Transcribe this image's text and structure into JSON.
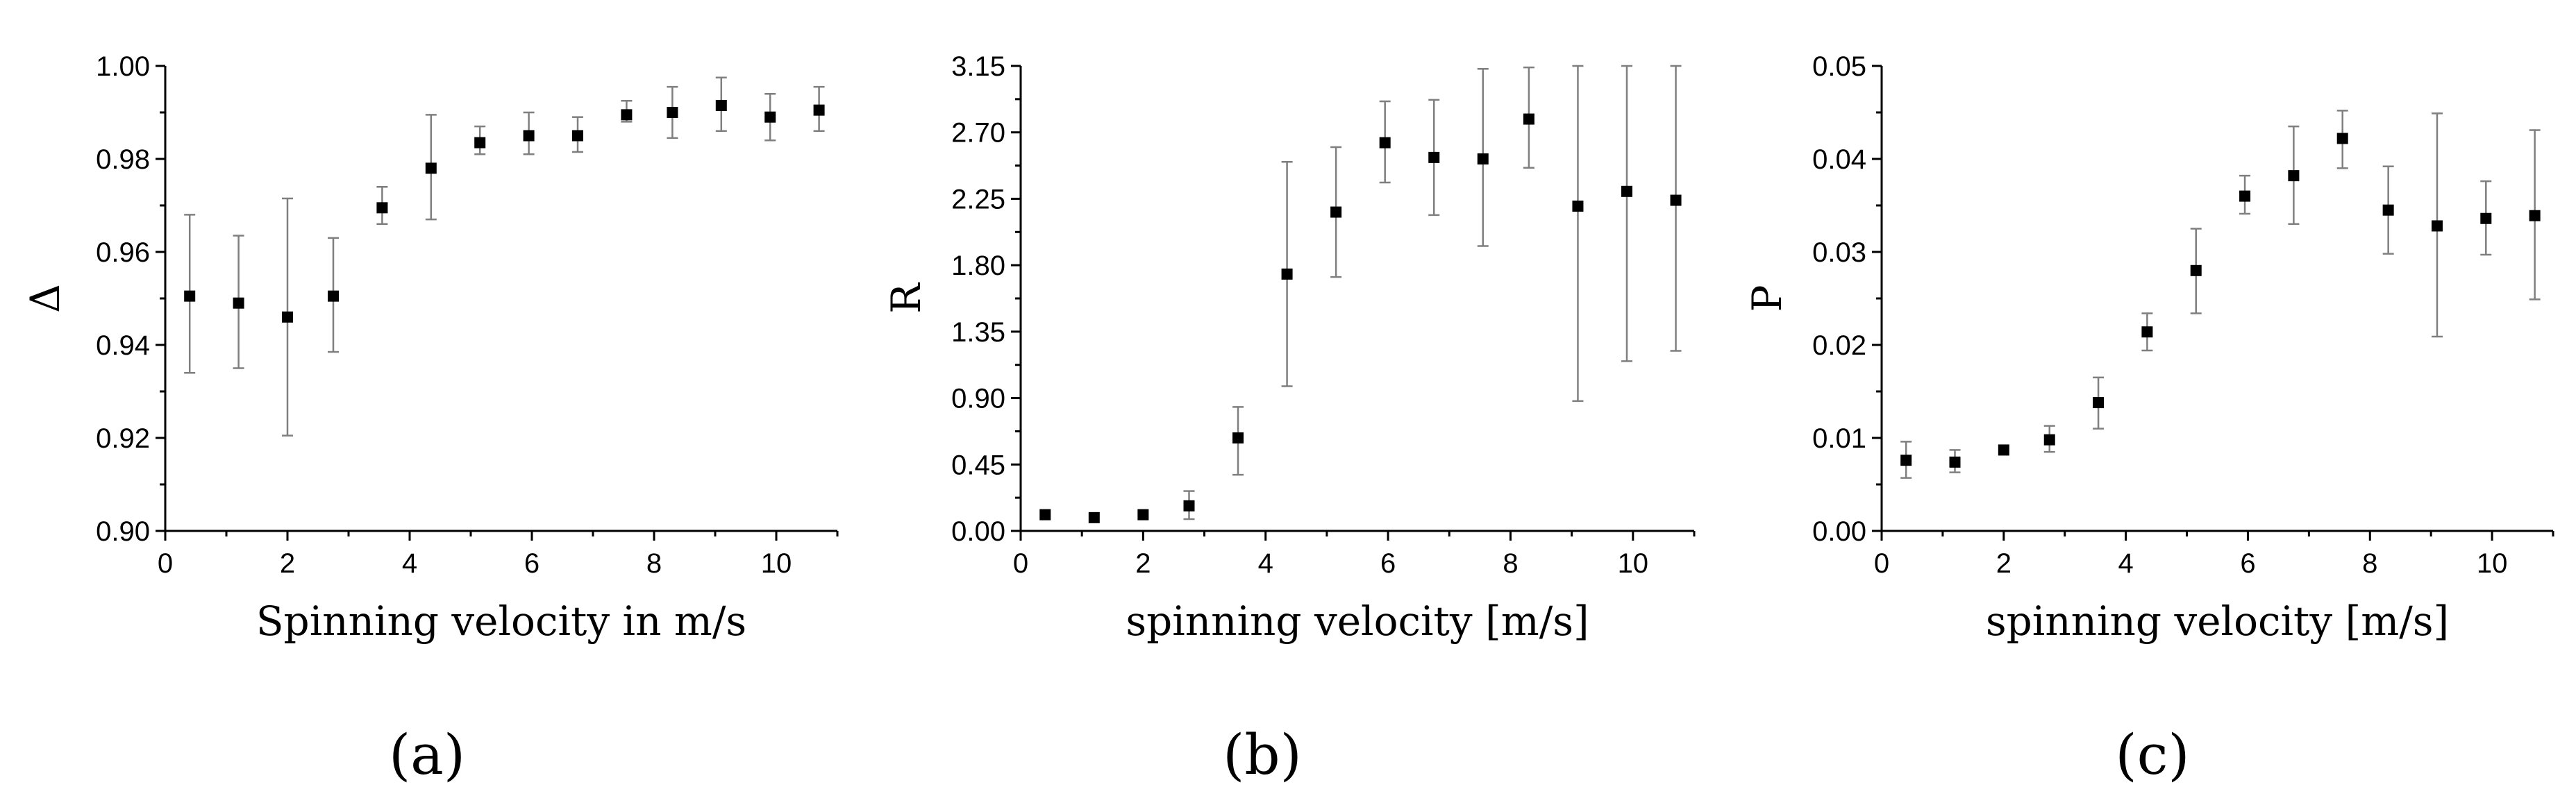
{
  "chart_data": [
    {
      "type": "scatter",
      "panel_label": "(a)",
      "xlabel": "Spinning velocity in m/s",
      "ylabel": "Δ",
      "xlim": [
        0,
        11
      ],
      "ylim": [
        0.9,
        1.0
      ],
      "x_ticks": [
        0,
        2,
        4,
        6,
        8,
        10
      ],
      "x_tick_labels": [
        "0",
        "2",
        "4",
        "6",
        "8",
        "10"
      ],
      "y_ticks": [
        0.9,
        0.92,
        0.94,
        0.96,
        0.98,
        1.0
      ],
      "y_tick_labels": [
        "0.90",
        "0.92",
        "0.94",
        "0.96",
        "0.98",
        "1.00"
      ],
      "series": [
        {
          "name": "Δ",
          "x": [
            0.4,
            1.2,
            2.0,
            2.75,
            3.55,
            4.35,
            5.15,
            5.95,
            6.75,
            7.55,
            8.3,
            9.1,
            9.9,
            10.7
          ],
          "y": [
            0.9505,
            0.949,
            0.946,
            0.9505,
            0.9695,
            0.978,
            0.9835,
            0.985,
            0.985,
            0.9895,
            0.99,
            0.9915,
            0.989,
            0.9905
          ],
          "err_low": [
            0.934,
            0.935,
            0.9205,
            0.9385,
            0.966,
            0.967,
            0.981,
            0.981,
            0.9815,
            0.988,
            0.9845,
            0.986,
            0.984,
            0.986
          ],
          "err_high": [
            0.968,
            0.9635,
            0.9715,
            0.963,
            0.974,
            0.9895,
            0.987,
            0.99,
            0.989,
            0.9925,
            0.9955,
            0.9975,
            0.994,
            0.9955
          ]
        }
      ]
    },
    {
      "type": "scatter",
      "panel_label": "(b)",
      "xlabel": "spinning velocity [m/s]",
      "ylabel": "R",
      "xlim": [
        0,
        11
      ],
      "ylim": [
        0,
        3.15
      ],
      "x_ticks": [
        0,
        2,
        4,
        6,
        8,
        10
      ],
      "x_tick_labels": [
        "0",
        "2",
        "4",
        "6",
        "8",
        "10"
      ],
      "y_ticks": [
        0,
        0.45,
        0.9,
        1.35,
        1.8,
        2.25,
        2.7,
        3.15
      ],
      "y_tick_labels": [
        "0.00",
        "0.45",
        "0.90",
        "1.35",
        "1.80",
        "2.25",
        "2.70",
        "3.15"
      ],
      "series": [
        {
          "name": "R",
          "x": [
            0.4,
            1.2,
            2.0,
            2.75,
            3.55,
            4.35,
            5.15,
            5.95,
            6.75,
            7.55,
            8.3,
            9.1,
            9.9,
            10.7
          ],
          "y": [
            0.11,
            0.09,
            0.11,
            0.17,
            0.63,
            1.74,
            2.16,
            2.63,
            2.53,
            2.52,
            2.79,
            2.2,
            2.3,
            2.24
          ],
          "err_low": [
            0.11,
            0.09,
            0.11,
            0.08,
            0.38,
            0.98,
            1.72,
            2.36,
            2.14,
            1.93,
            2.46,
            0.88,
            1.15,
            1.22
          ],
          "err_high": [
            0.11,
            0.09,
            0.11,
            0.27,
            0.84,
            2.5,
            2.6,
            2.91,
            2.92,
            3.13,
            3.14,
            3.15,
            3.15,
            3.15
          ]
        }
      ]
    },
    {
      "type": "scatter",
      "panel_label": "(c)",
      "xlabel": "spinning velocity [m/s]",
      "ylabel": "P",
      "xlim": [
        0,
        11
      ],
      "ylim": [
        0,
        0.05
      ],
      "x_ticks": [
        0,
        2,
        4,
        6,
        8,
        10
      ],
      "x_tick_labels": [
        "0",
        "2",
        "4",
        "6",
        "8",
        "10"
      ],
      "y_ticks": [
        0,
        0.01,
        0.02,
        0.03,
        0.04,
        0.05
      ],
      "y_tick_labels": [
        "0.00",
        "0.01",
        "0.02",
        "0.03",
        "0.04",
        "0.05"
      ],
      "series": [
        {
          "name": "P",
          "x": [
            0.4,
            1.2,
            2.0,
            2.75,
            3.55,
            4.35,
            5.15,
            5.95,
            6.75,
            7.55,
            8.3,
            9.1,
            9.9,
            10.7
          ],
          "y": [
            0.0076,
            0.0074,
            0.0087,
            0.0098,
            0.0138,
            0.0214,
            0.028,
            0.036,
            0.0382,
            0.0422,
            0.0345,
            0.0328,
            0.0336,
            0.0339
          ],
          "err_low": [
            0.0057,
            0.0063,
            0.0087,
            0.0085,
            0.011,
            0.0194,
            0.0234,
            0.0341,
            0.033,
            0.039,
            0.0298,
            0.0209,
            0.0297,
            0.0249
          ],
          "err_high": [
            0.0096,
            0.0087,
            0.0087,
            0.0113,
            0.0165,
            0.0234,
            0.0325,
            0.0382,
            0.0435,
            0.0452,
            0.0392,
            0.0449,
            0.0376,
            0.0431
          ]
        }
      ]
    }
  ]
}
